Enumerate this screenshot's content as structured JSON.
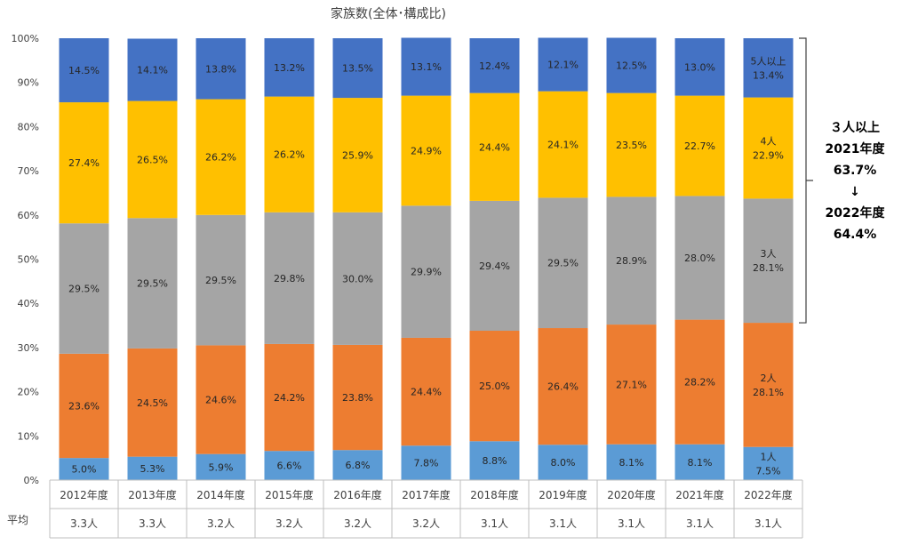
{
  "chart_data": {
    "type": "bar",
    "stacked": true,
    "title": "家族数(全体･構成比)",
    "categories": [
      "2012年度",
      "2013年度",
      "2014年度",
      "2015年度",
      "2016年度",
      "2017年度",
      "2018年度",
      "2019年度",
      "2020年度",
      "2021年度",
      "2022年度"
    ],
    "series": [
      {
        "name": "1人",
        "color": "#5b9bd5",
        "values": [
          5.0,
          5.3,
          5.9,
          6.6,
          6.8,
          7.8,
          8.8,
          8.0,
          8.1,
          8.1,
          7.5
        ]
      },
      {
        "name": "2人",
        "color": "#ed7d31",
        "values": [
          23.6,
          24.5,
          24.6,
          24.2,
          23.8,
          24.4,
          25.0,
          26.4,
          27.1,
          28.2,
          28.1
        ]
      },
      {
        "name": "3人",
        "color": "#a5a5a5",
        "values": [
          29.5,
          29.5,
          29.5,
          29.8,
          30.0,
          29.9,
          29.4,
          29.5,
          28.9,
          28.0,
          28.1
        ]
      },
      {
        "name": "4人",
        "color": "#ffc000",
        "values": [
          27.4,
          26.5,
          26.2,
          26.2,
          25.9,
          24.9,
          24.4,
          24.1,
          23.5,
          22.7,
          22.9
        ]
      },
      {
        "name": "5人以上",
        "color": "#4472c4",
        "values": [
          14.5,
          14.1,
          13.8,
          13.2,
          13.5,
          13.1,
          12.4,
          12.1,
          12.5,
          13.0,
          13.4
        ]
      }
    ],
    "y_ticks": [
      "0%",
      "10%",
      "20%",
      "30%",
      "40%",
      "50%",
      "60%",
      "70%",
      "80%",
      "90%",
      "100%"
    ],
    "ylim": [
      0,
      100
    ],
    "grid": false,
    "average_row": {
      "label": "平均",
      "values": [
        "3.3人",
        "3.3人",
        "3.2人",
        "3.2人",
        "3.2人",
        "3.2人",
        "3.1人",
        "3.1人",
        "3.1人",
        "3.1人",
        "3.1人"
      ]
    },
    "annotation": {
      "lines": [
        "３人以上",
        "2021年度",
        "63.7%",
        "↓",
        "2022年度",
        "64.4%"
      ]
    }
  }
}
